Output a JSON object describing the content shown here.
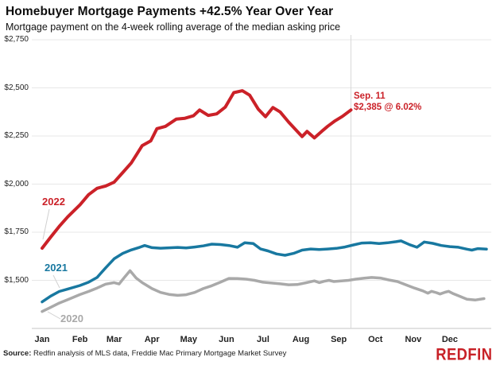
{
  "header": {
    "title": "Homebuyer Mortgage Payments +42.5% Year Over Year",
    "subtitle": "Mortgage payment on the 4-week rolling average of the median asking price"
  },
  "footer": {
    "source_label": "Source:",
    "source_text": " Redfin analysis of MLS data, Freddie Mac Primary Mortgage Market Survey",
    "brand": "REDFIN"
  },
  "annotation": {
    "line1": "Sep. 11",
    "line2": "$2,385 @ 6.02%"
  },
  "colors": {
    "red": "#cb2128",
    "blue": "#1878a0",
    "gray": "#a9a9a9",
    "grid": "#e7e7e7",
    "axis": "#c4c4c4",
    "marker_line": "#d8d8d8",
    "leader": "#d0d0d0",
    "brand_red": "#c82127"
  },
  "chart_data": {
    "type": "line",
    "title": "Homebuyer Mortgage Payments +42.5% Year Over Year",
    "subtitle": "Mortgage payment on the 4-week rolling average of the median asking price",
    "xlabel": "",
    "ylabel": "",
    "x_unit": "day_of_year",
    "ylim": [
      1250,
      2750
    ],
    "grid": "horizontal",
    "x_ticks": {
      "labels": [
        "Jan",
        "Feb",
        "Mar",
        "Apr",
        "May",
        "Jun",
        "Jul",
        "Aug",
        "Sep",
        "Oct",
        "Nov",
        "Dec"
      ],
      "day_of_year": [
        1,
        32,
        60,
        91,
        121,
        152,
        182,
        213,
        244,
        274,
        305,
        335
      ]
    },
    "y_ticks": {
      "labels": [
        "$2,750",
        "$2,500",
        "$2,250",
        "$2,000",
        "$1,750",
        "$1,500"
      ],
      "values": [
        2750,
        2500,
        2250,
        2000,
        1750,
        1500
      ]
    },
    "marker": {
      "day_of_year": 254,
      "label_line1": "Sep. 11",
      "label_line2": "$2,385 @ 6.02%",
      "value": 2385,
      "rate": "6.02%"
    },
    "series": [
      {
        "name": "2020",
        "color_key": "gray",
        "points": [
          [
            1,
            1338
          ],
          [
            8,
            1360
          ],
          [
            15,
            1382
          ],
          [
            22,
            1400
          ],
          [
            32,
            1426
          ],
          [
            39,
            1442
          ],
          [
            46,
            1460
          ],
          [
            53,
            1480
          ],
          [
            60,
            1488
          ],
          [
            64,
            1481
          ],
          [
            69,
            1520
          ],
          [
            73,
            1550
          ],
          [
            78,
            1512
          ],
          [
            83,
            1488
          ],
          [
            91,
            1457
          ],
          [
            98,
            1437
          ],
          [
            105,
            1427
          ],
          [
            112,
            1422
          ],
          [
            119,
            1425
          ],
          [
            126,
            1437
          ],
          [
            133,
            1457
          ],
          [
            140,
            1472
          ],
          [
            147,
            1490
          ],
          [
            154,
            1510
          ],
          [
            161,
            1509
          ],
          [
            168,
            1506
          ],
          [
            175,
            1500
          ],
          [
            182,
            1490
          ],
          [
            189,
            1486
          ],
          [
            196,
            1482
          ],
          [
            203,
            1477
          ],
          [
            210,
            1478
          ],
          [
            217,
            1487
          ],
          [
            224,
            1497
          ],
          [
            228,
            1488
          ],
          [
            232,
            1495
          ],
          [
            236,
            1500
          ],
          [
            240,
            1494
          ],
          [
            246,
            1497
          ],
          [
            252,
            1500
          ],
          [
            258,
            1506
          ],
          [
            265,
            1511
          ],
          [
            271,
            1515
          ],
          [
            278,
            1512
          ],
          [
            285,
            1502
          ],
          [
            292,
            1494
          ],
          [
            299,
            1477
          ],
          [
            306,
            1460
          ],
          [
            313,
            1445
          ],
          [
            317,
            1433
          ],
          [
            320,
            1443
          ],
          [
            324,
            1436
          ],
          [
            327,
            1429
          ],
          [
            331,
            1438
          ],
          [
            334,
            1443
          ],
          [
            338,
            1430
          ],
          [
            342,
            1420
          ],
          [
            349,
            1402
          ],
          [
            356,
            1398
          ],
          [
            363,
            1405
          ]
        ]
      },
      {
        "name": "2021",
        "color_key": "blue",
        "points": [
          [
            1,
            1388
          ],
          [
            8,
            1418
          ],
          [
            15,
            1442
          ],
          [
            22,
            1455
          ],
          [
            32,
            1473
          ],
          [
            39,
            1490
          ],
          [
            46,
            1515
          ],
          [
            53,
            1565
          ],
          [
            60,
            1612
          ],
          [
            67,
            1640
          ],
          [
            74,
            1658
          ],
          [
            81,
            1672
          ],
          [
            85,
            1681
          ],
          [
            91,
            1670
          ],
          [
            98,
            1667
          ],
          [
            105,
            1669
          ],
          [
            112,
            1671
          ],
          [
            119,
            1668
          ],
          [
            126,
            1673
          ],
          [
            133,
            1679
          ],
          [
            140,
            1688
          ],
          [
            147,
            1686
          ],
          [
            154,
            1681
          ],
          [
            161,
            1672
          ],
          [
            167,
            1695
          ],
          [
            174,
            1691
          ],
          [
            180,
            1663
          ],
          [
            186,
            1653
          ],
          [
            193,
            1637
          ],
          [
            200,
            1630
          ],
          [
            207,
            1640
          ],
          [
            214,
            1657
          ],
          [
            221,
            1663
          ],
          [
            228,
            1660
          ],
          [
            235,
            1663
          ],
          [
            242,
            1666
          ],
          [
            249,
            1673
          ],
          [
            256,
            1684
          ],
          [
            263,
            1694
          ],
          [
            270,
            1695
          ],
          [
            277,
            1691
          ],
          [
            284,
            1695
          ],
          [
            291,
            1701
          ],
          [
            295,
            1705
          ],
          [
            302,
            1685
          ],
          [
            308,
            1672
          ],
          [
            314,
            1699
          ],
          [
            321,
            1692
          ],
          [
            328,
            1681
          ],
          [
            335,
            1675
          ],
          [
            342,
            1672
          ],
          [
            349,
            1662
          ],
          [
            353,
            1657
          ],
          [
            358,
            1665
          ],
          [
            365,
            1662
          ]
        ]
      },
      {
        "name": "2022",
        "color_key": "red",
        "points": [
          [
            1,
            1667
          ],
          [
            8,
            1725
          ],
          [
            15,
            1780
          ],
          [
            22,
            1830
          ],
          [
            32,
            1892
          ],
          [
            39,
            1945
          ],
          [
            46,
            1978
          ],
          [
            53,
            1990
          ],
          [
            60,
            2010
          ],
          [
            67,
            2060
          ],
          [
            74,
            2110
          ],
          [
            78,
            2150
          ],
          [
            83,
            2200
          ],
          [
            90,
            2225
          ],
          [
            95,
            2288
          ],
          [
            102,
            2300
          ],
          [
            111,
            2338
          ],
          [
            118,
            2342
          ],
          [
            125,
            2355
          ],
          [
            130,
            2385
          ],
          [
            137,
            2357
          ],
          [
            144,
            2365
          ],
          [
            151,
            2400
          ],
          [
            158,
            2475
          ],
          [
            165,
            2485
          ],
          [
            171,
            2462
          ],
          [
            178,
            2390
          ],
          [
            184,
            2350
          ],
          [
            190,
            2398
          ],
          [
            196,
            2375
          ],
          [
            203,
            2322
          ],
          [
            209,
            2281
          ],
          [
            214,
            2247
          ],
          [
            218,
            2274
          ],
          [
            224,
            2240
          ],
          [
            230,
            2274
          ],
          [
            235,
            2301
          ],
          [
            241,
            2329
          ],
          [
            247,
            2352
          ],
          [
            254,
            2385
          ]
        ]
      }
    ],
    "legend": "inline-labels"
  }
}
